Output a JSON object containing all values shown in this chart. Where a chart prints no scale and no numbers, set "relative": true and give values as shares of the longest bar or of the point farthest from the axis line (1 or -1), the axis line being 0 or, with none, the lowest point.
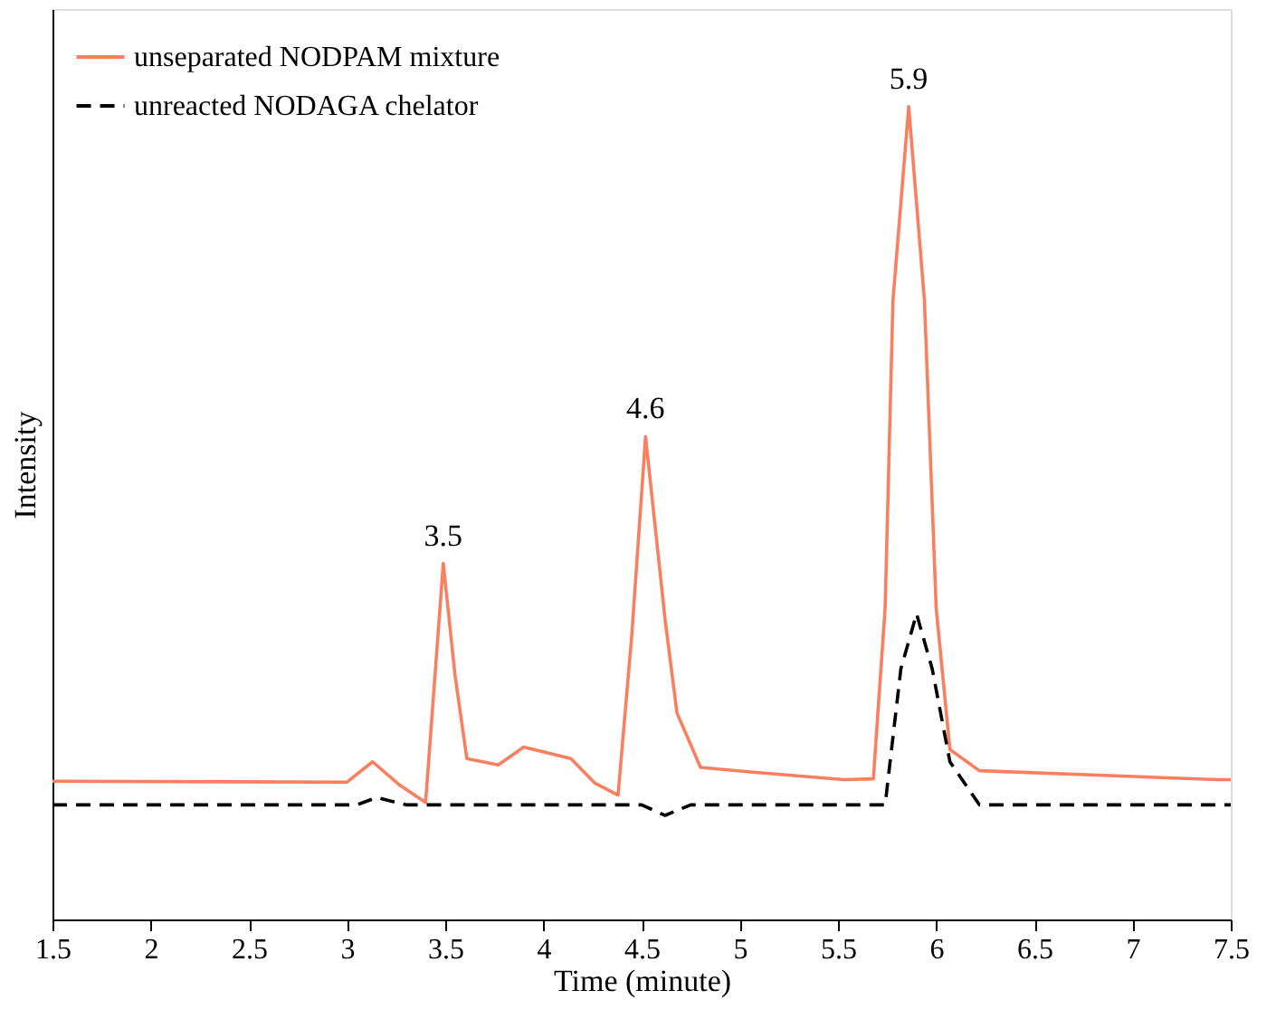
{
  "chart_data": {
    "type": "line",
    "xlabel": "Time (minute)",
    "ylabel": "Intensity",
    "relative": true,
    "xlim": [
      1.5,
      7.5
    ],
    "xticks": [
      1.5,
      2,
      2.5,
      3,
      3.5,
      4,
      4.5,
      5,
      5.5,
      6,
      6.5,
      7,
      7.5
    ],
    "tick_labels": "x",
    "grid": false,
    "legend": "top left",
    "marker": "none",
    "series": [
      {
        "name": "unseparated NODPAM mixture",
        "color": "#fa7f5f",
        "line_style": "solid",
        "x": [
          1.5,
          3.0,
          3.13,
          3.27,
          3.4,
          3.49,
          3.55,
          3.61,
          3.77,
          3.9,
          4.14,
          4.26,
          4.38,
          4.45,
          4.52,
          4.62,
          4.68,
          4.8,
          5.08,
          5.53,
          5.68,
          5.74,
          5.78,
          5.86,
          5.94,
          6.0,
          6.07,
          6.22,
          7.43,
          7.5
        ],
        "values": [
          0.17,
          0.169,
          0.194,
          0.165,
          0.144,
          0.438,
          0.3,
          0.198,
          0.19,
          0.212,
          0.198,
          0.168,
          0.153,
          0.35,
          0.594,
          0.368,
          0.254,
          0.187,
          0.181,
          0.172,
          0.173,
          0.383,
          0.762,
          1.0,
          0.762,
          0.383,
          0.209,
          0.183,
          0.172,
          0.172
        ]
      },
      {
        "name": "unreacted NODAGA chelator",
        "color": "#000000",
        "line_style": "dashed",
        "x": [
          1.5,
          3.05,
          3.15,
          3.3,
          4.5,
          4.62,
          4.75,
          5.74,
          5.82,
          5.9,
          5.98,
          6.07,
          6.22,
          7.5
        ],
        "values": [
          0.141,
          0.141,
          0.15,
          0.141,
          0.141,
          0.128,
          0.141,
          0.141,
          0.308,
          0.376,
          0.308,
          0.194,
          0.141,
          0.141
        ]
      }
    ],
    "annotations": [
      {
        "text": "3.5",
        "x": 3.49,
        "y": 0.438
      },
      {
        "text": "4.6",
        "x": 4.52,
        "y": 0.594
      },
      {
        "text": "5.9",
        "x": 5.86,
        "y": 1.0
      }
    ]
  }
}
